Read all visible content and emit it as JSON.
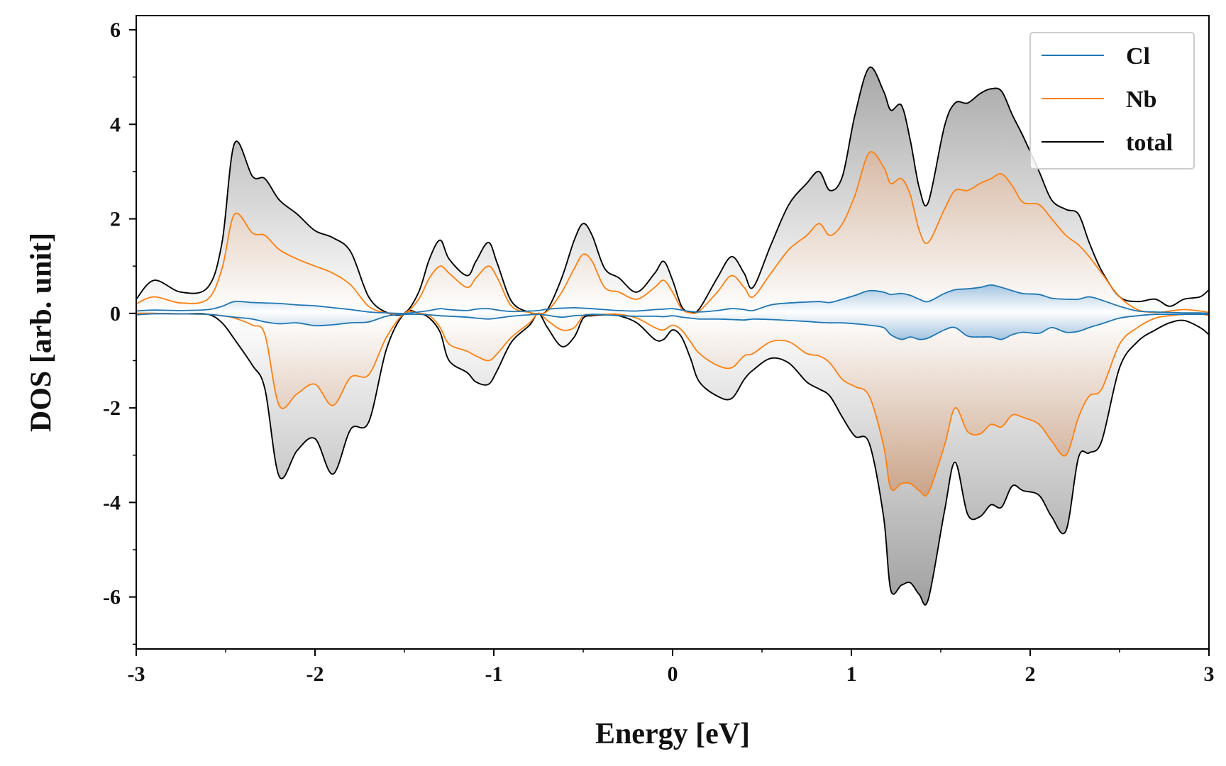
{
  "chart_data": {
    "type": "line",
    "title": "",
    "xlabel": "Energy [eV]",
    "ylabel": "DOS [arb. unit]",
    "xlim": [
      -3,
      3
    ],
    "ylim": [
      -7.1,
      6.3
    ],
    "grid": false,
    "legend_position": "top-right",
    "x_major_ticks": [
      -3,
      -2,
      -1,
      0,
      1,
      2,
      3
    ],
    "x_tick_labels": [
      "-3",
      "-2",
      "-1",
      "0",
      "1",
      "2",
      "3"
    ],
    "y_major_ticks": [
      -6,
      -4,
      -2,
      0,
      2,
      4,
      6
    ],
    "y_tick_labels": [
      "-6",
      "-4",
      "-2",
      "0",
      "2",
      "4",
      "6"
    ],
    "x_minor_step": 0.5,
    "y_minor_step": 1,
    "x": [
      -3.0,
      -2.9,
      -2.75,
      -2.6,
      -2.52,
      -2.45,
      -2.35,
      -2.28,
      -2.2,
      -2.1,
      -2.0,
      -1.9,
      -1.8,
      -1.7,
      -1.6,
      -1.5,
      -1.42,
      -1.36,
      -1.3,
      -1.25,
      -1.15,
      -1.1,
      -1.03,
      -0.98,
      -0.9,
      -0.8,
      -0.75,
      -0.7,
      -0.62,
      -0.55,
      -0.5,
      -0.45,
      -0.38,
      -0.3,
      -0.2,
      -0.1,
      -0.05,
      0.0,
      0.05,
      0.1,
      0.15,
      0.25,
      0.33,
      0.4,
      0.45,
      0.55,
      0.65,
      0.75,
      0.82,
      0.88,
      0.95,
      1.02,
      1.1,
      1.18,
      1.22,
      1.28,
      1.33,
      1.38,
      1.43,
      1.52,
      1.58,
      1.65,
      1.72,
      1.78,
      1.84,
      1.9,
      1.96,
      2.05,
      2.12,
      2.2,
      2.27,
      2.33,
      2.4,
      2.5,
      2.6,
      2.7,
      2.78,
      2.86,
      2.95,
      3.0
    ],
    "series": [
      {
        "name": "Cl",
        "color": "#1f77b4",
        "up": [
          0.05,
          0.07,
          0.06,
          0.08,
          0.15,
          0.25,
          0.23,
          0.22,
          0.21,
          0.18,
          0.16,
          0.12,
          0.08,
          0.03,
          0.01,
          0.0,
          0.03,
          0.06,
          0.1,
          0.08,
          0.06,
          0.09,
          0.1,
          0.07,
          0.04,
          0.05,
          0.06,
          0.09,
          0.11,
          0.12,
          0.11,
          0.1,
          0.08,
          0.06,
          0.05,
          0.08,
          0.09,
          0.1,
          0.07,
          0.04,
          0.03,
          0.06,
          0.1,
          0.08,
          0.06,
          0.18,
          0.22,
          0.24,
          0.25,
          0.23,
          0.3,
          0.38,
          0.48,
          0.45,
          0.4,
          0.42,
          0.38,
          0.3,
          0.25,
          0.42,
          0.5,
          0.52,
          0.55,
          0.6,
          0.55,
          0.48,
          0.42,
          0.4,
          0.32,
          0.3,
          0.3,
          0.35,
          0.28,
          0.15,
          0.05,
          0.03,
          0.02,
          0.01,
          0.01,
          0.0
        ],
        "down": [
          -0.03,
          -0.01,
          -0.01,
          -0.02,
          -0.05,
          -0.08,
          -0.12,
          -0.18,
          -0.22,
          -0.2,
          -0.26,
          -0.24,
          -0.2,
          -0.18,
          -0.06,
          -0.02,
          -0.02,
          -0.03,
          -0.05,
          -0.06,
          -0.08,
          -0.1,
          -0.12,
          -0.1,
          -0.06,
          -0.03,
          -0.02,
          -0.04,
          -0.08,
          -0.05,
          -0.04,
          -0.02,
          -0.03,
          -0.05,
          -0.06,
          -0.06,
          -0.07,
          -0.05,
          -0.08,
          -0.1,
          -0.12,
          -0.12,
          -0.13,
          -0.14,
          -0.12,
          -0.13,
          -0.15,
          -0.17,
          -0.19,
          -0.2,
          -0.2,
          -0.22,
          -0.25,
          -0.3,
          -0.45,
          -0.55,
          -0.5,
          -0.55,
          -0.52,
          -0.35,
          -0.3,
          -0.48,
          -0.5,
          -0.5,
          -0.55,
          -0.45,
          -0.4,
          -0.42,
          -0.3,
          -0.4,
          -0.38,
          -0.3,
          -0.22,
          -0.1,
          -0.05,
          -0.02,
          -0.02,
          -0.02,
          -0.02,
          -0.02
        ]
      },
      {
        "name": "Nb",
        "color": "#ff7f0e",
        "up": [
          0.2,
          0.35,
          0.22,
          0.3,
          0.95,
          2.1,
          1.7,
          1.65,
          1.35,
          1.15,
          1.0,
          0.85,
          0.6,
          0.15,
          0.01,
          0.0,
          0.3,
          0.75,
          1.0,
          0.85,
          0.55,
          0.75,
          1.0,
          0.75,
          0.15,
          0.02,
          0.0,
          0.05,
          0.45,
          0.95,
          1.25,
          1.1,
          0.55,
          0.45,
          0.3,
          0.55,
          0.7,
          0.45,
          0.1,
          0.01,
          0.05,
          0.45,
          0.8,
          0.55,
          0.35,
          0.85,
          1.35,
          1.65,
          1.9,
          1.65,
          1.9,
          2.5,
          3.4,
          3.1,
          2.75,
          2.85,
          2.5,
          1.75,
          1.5,
          2.2,
          2.6,
          2.6,
          2.75,
          2.85,
          2.95,
          2.7,
          2.35,
          2.3,
          2.0,
          1.65,
          1.45,
          1.2,
          0.85,
          0.35,
          0.08,
          0.02,
          0.05,
          0.08,
          0.05,
          0.02
        ],
        "down": [
          0.0,
          0.0,
          -0.01,
          -0.02,
          -0.05,
          -0.1,
          -0.25,
          -0.45,
          -1.95,
          -1.7,
          -1.5,
          -1.95,
          -1.35,
          -1.3,
          -0.5,
          0.0,
          0.0,
          -0.05,
          -0.3,
          -0.65,
          -0.8,
          -0.9,
          -1.0,
          -0.85,
          -0.5,
          -0.2,
          0.0,
          -0.15,
          -0.35,
          -0.3,
          -0.05,
          -0.03,
          -0.02,
          -0.02,
          -0.1,
          -0.3,
          -0.35,
          -0.25,
          -0.35,
          -0.6,
          -0.85,
          -1.1,
          -1.15,
          -0.9,
          -0.85,
          -0.6,
          -0.6,
          -0.85,
          -0.9,
          -1.05,
          -1.4,
          -1.55,
          -1.75,
          -2.8,
          -3.7,
          -3.6,
          -3.6,
          -3.75,
          -3.8,
          -2.8,
          -2.0,
          -2.5,
          -2.55,
          -2.35,
          -2.4,
          -2.15,
          -2.2,
          -2.35,
          -2.7,
          -3.0,
          -2.2,
          -1.75,
          -1.6,
          -0.65,
          -0.3,
          -0.1,
          -0.05,
          -0.02,
          -0.01,
          -0.05
        ]
      },
      {
        "name": "total",
        "color": "#000000",
        "up": [
          0.3,
          0.7,
          0.45,
          0.55,
          1.5,
          3.6,
          2.9,
          2.85,
          2.4,
          2.1,
          1.75,
          1.6,
          1.3,
          0.35,
          0.02,
          0.0,
          0.45,
          1.15,
          1.55,
          1.15,
          0.8,
          1.1,
          1.5,
          1.05,
          0.25,
          0.02,
          0.0,
          0.08,
          0.75,
          1.55,
          1.9,
          1.65,
          0.95,
          0.75,
          0.45,
          0.85,
          1.1,
          0.7,
          0.15,
          0.02,
          0.1,
          0.75,
          1.2,
          0.85,
          0.55,
          1.45,
          2.3,
          2.75,
          3.0,
          2.6,
          2.9,
          4.2,
          5.2,
          4.7,
          4.3,
          4.4,
          3.65,
          2.65,
          2.35,
          3.95,
          4.45,
          4.45,
          4.65,
          4.75,
          4.7,
          4.2,
          3.75,
          3.0,
          2.4,
          2.2,
          2.1,
          1.5,
          0.9,
          0.35,
          0.25,
          0.3,
          0.15,
          0.3,
          0.35,
          0.5
        ],
        "down": [
          0.0,
          0.0,
          -0.01,
          -0.02,
          -0.2,
          -0.55,
          -1.1,
          -1.6,
          -3.45,
          -2.9,
          -2.65,
          -3.4,
          -2.45,
          -2.3,
          -0.75,
          0.0,
          0.0,
          -0.1,
          -0.4,
          -1.0,
          -1.25,
          -1.45,
          -1.5,
          -1.2,
          -0.6,
          -0.25,
          0.0,
          -0.3,
          -0.7,
          -0.5,
          -0.1,
          -0.05,
          -0.03,
          -0.05,
          -0.2,
          -0.55,
          -0.55,
          -0.35,
          -0.5,
          -0.95,
          -1.45,
          -1.75,
          -1.8,
          -1.4,
          -1.2,
          -0.95,
          -1.05,
          -1.45,
          -1.6,
          -1.75,
          -2.2,
          -2.6,
          -2.75,
          -4.3,
          -5.85,
          -5.75,
          -5.7,
          -5.95,
          -6.05,
          -4.2,
          -3.15,
          -4.25,
          -4.3,
          -4.05,
          -4.1,
          -3.65,
          -3.75,
          -3.85,
          -4.3,
          -4.6,
          -3.05,
          -2.95,
          -2.7,
          -1.15,
          -0.6,
          -0.35,
          -0.2,
          -0.15,
          -0.3,
          -0.45
        ]
      }
    ]
  }
}
